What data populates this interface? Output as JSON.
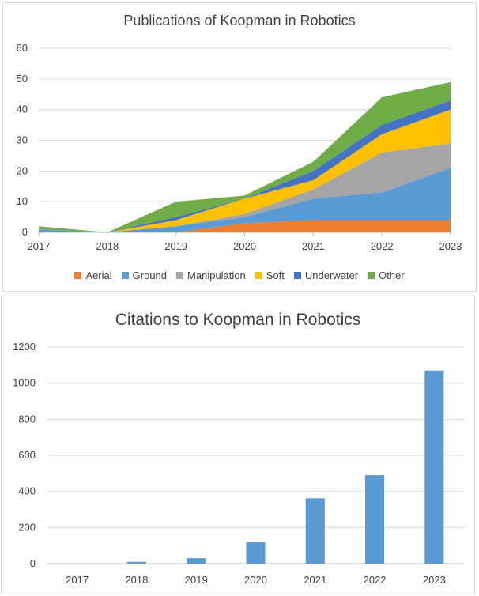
{
  "chart_data": [
    {
      "type": "area",
      "title": "Publications of Koopman in Robotics",
      "x": [
        "2017",
        "2018",
        "2019",
        "2020",
        "2021",
        "2022",
        "2023"
      ],
      "ylim": [
        0,
        60
      ],
      "yticks": [
        "0",
        "10",
        "20",
        "30",
        "40",
        "50",
        "60"
      ],
      "stacked": true,
      "grid": true,
      "legend_position": "bottom",
      "series": [
        {
          "name": "Aerial",
          "color": "#ED7D31",
          "values": [
            0,
            0,
            0,
            3,
            4,
            4,
            4
          ]
        },
        {
          "name": "Ground",
          "color": "#5B9BD5",
          "values": [
            1,
            0,
            2,
            2,
            7,
            9,
            17
          ]
        },
        {
          "name": "Manipulation",
          "color": "#A5A5A5",
          "values": [
            0,
            0,
            0,
            1,
            3,
            13,
            8
          ]
        },
        {
          "name": "Soft",
          "color": "#FFC000",
          "values": [
            0,
            0,
            2,
            5,
            3,
            6,
            11
          ]
        },
        {
          "name": "Underwater",
          "color": "#4472C4",
          "values": [
            0,
            0,
            1,
            0,
            3,
            3,
            3
          ]
        },
        {
          "name": "Other",
          "color": "#70AD47",
          "values": [
            1,
            0,
            5,
            1,
            3,
            9,
            6
          ]
        }
      ]
    },
    {
      "type": "bar",
      "title": "Citations to Koopman in Robotics",
      "categories": [
        "2017",
        "2018",
        "2019",
        "2020",
        "2021",
        "2022",
        "2023"
      ],
      "values": [
        0,
        10,
        30,
        118,
        362,
        490,
        1070
      ],
      "ylim": [
        0,
        1200
      ],
      "yticks": [
        "0",
        "200",
        "400",
        "600",
        "800",
        "1000",
        "1200"
      ],
      "color": "#5B9BD5",
      "grid": true
    }
  ]
}
